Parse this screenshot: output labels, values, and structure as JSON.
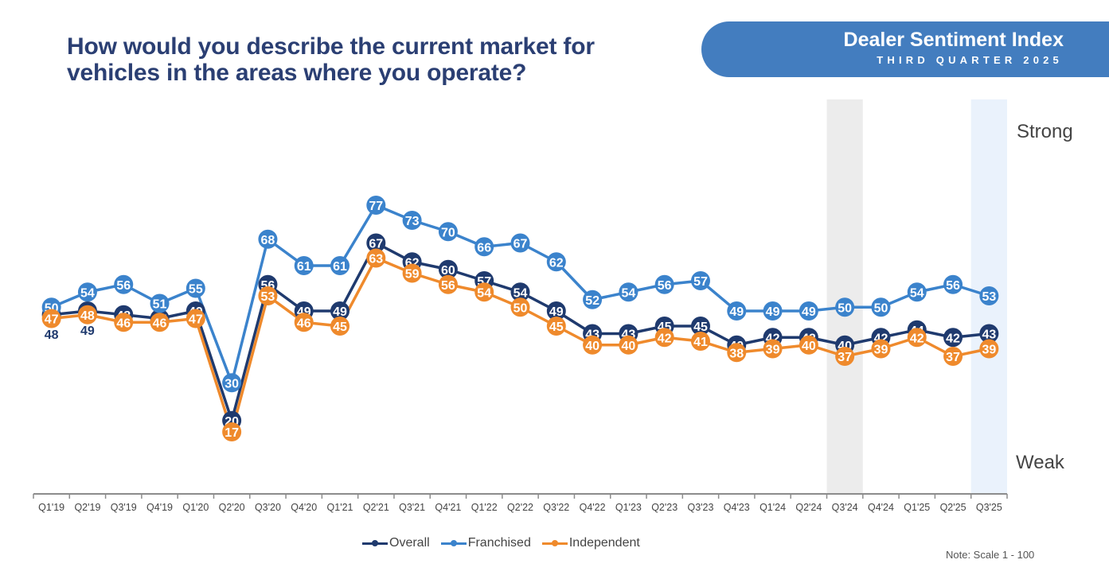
{
  "header": {
    "question": "How would you describe the current market for vehicles in the areas where you operate?",
    "banner_title": "Dealer Sentiment Index",
    "banner_subtitle": "THIRD QUARTER 2025"
  },
  "scale_labels": {
    "top": "Strong",
    "bottom": "Weak"
  },
  "note": "Note: Scale 1 - 100",
  "colors": {
    "overall": "#1f3a6e",
    "franchised": "#3b83cc",
    "independent": "#ef8a2c",
    "highlight_gray": "#ececec",
    "highlight_blue": "#eaf2fc",
    "banner": "#437dbf",
    "title": "#2b3f73"
  },
  "chart_data": {
    "type": "line",
    "title": "How would you describe the current market for vehicles in the areas where you operate?",
    "xlabel": "",
    "ylabel": "",
    "ylim": [
      0,
      100
    ],
    "grid": false,
    "legend_position": "bottom",
    "categories": [
      "Q1'19",
      "Q2'19",
      "Q3'19",
      "Q4'19",
      "Q1'20",
      "Q2'20",
      "Q3'20",
      "Q4'20",
      "Q1'21",
      "Q2'21",
      "Q3'21",
      "Q4'21",
      "Q1'22",
      "Q2'22",
      "Q3'22",
      "Q4'22",
      "Q1'23",
      "Q2'23",
      "Q3'23",
      "Q4'23",
      "Q1'24",
      "Q2'24",
      "Q3'24",
      "Q4'24",
      "Q1'25",
      "Q2'25",
      "Q3'25"
    ],
    "highlighted_categories": [
      {
        "category": "Q3'24",
        "style": "gray"
      },
      {
        "category": "Q3'25",
        "style": "blue"
      }
    ],
    "series": [
      {
        "name": "Overall",
        "key": "overall",
        "values": [
          48,
          49,
          48,
          47,
          49,
          20,
          56,
          49,
          49,
          67,
          62,
          60,
          57,
          54,
          49,
          43,
          43,
          45,
          45,
          40,
          42,
          42,
          40,
          42,
          44,
          42,
          43
        ]
      },
      {
        "name": "Franchised",
        "key": "franchised",
        "values": [
          50,
          54,
          56,
          51,
          55,
          30,
          68,
          61,
          61,
          77,
          73,
          70,
          66,
          67,
          62,
          52,
          54,
          56,
          57,
          49,
          49,
          49,
          50,
          50,
          54,
          56,
          53
        ]
      },
      {
        "name": "Independent",
        "key": "independent",
        "values": [
          47,
          48,
          46,
          46,
          47,
          17,
          53,
          46,
          45,
          63,
          59,
          56,
          54,
          50,
          45,
          40,
          40,
          42,
          41,
          38,
          39,
          40,
          37,
          39,
          42,
          37,
          39
        ]
      }
    ]
  },
  "legend": [
    {
      "label": "Overall",
      "key": "overall"
    },
    {
      "label": "Franchised",
      "key": "franchised"
    },
    {
      "label": "Independent",
      "key": "independent"
    }
  ]
}
